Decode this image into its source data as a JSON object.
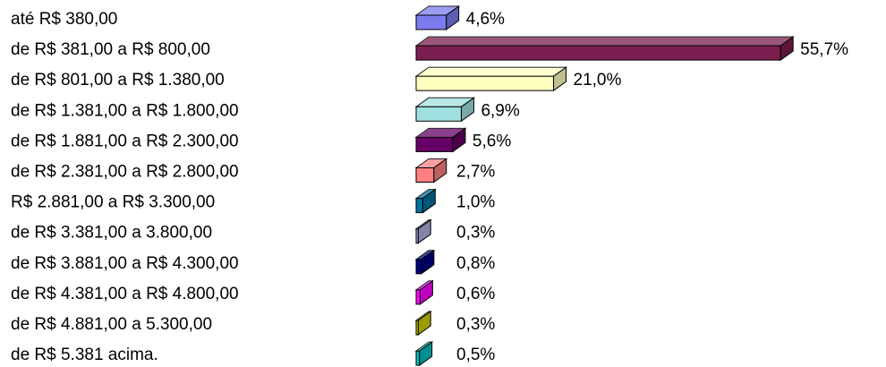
{
  "chart_data": {
    "type": "bar",
    "orientation": "horizontal",
    "categories": [
      "até R$ 380,00",
      "de R$ 381,00 a R$ 800,00",
      "de R$ 801,00 a R$ 1.380,00",
      "de R$ 1.381,00 a R$ 1.800,00",
      "de  R$ 1.881,00 a R$ 2.300,00",
      "de R$ 2.381,00 a R$ 2.800,00",
      "R$ 2.881,00 a R$ 3.300,00",
      "de R$ 3.381,00 a 3.800,00",
      "de R$ 3.881,00 a R$ 4.300,00",
      "de R$ 4.381,00 a R$ 4.800,00",
      "de R$ 4.881,00 a 5.300,00",
      "de R$ 5.381 acima."
    ],
    "values": [
      4.6,
      55.7,
      21.0,
      6.9,
      5.6,
      2.7,
      1.0,
      0.3,
      0.8,
      0.6,
      0.3,
      0.5
    ],
    "value_labels": [
      "4,6%",
      "55,7%",
      "21,0%",
      "6,9%",
      "5,6%",
      "2,7%",
      "1,0%",
      "0,3%",
      "0,8%",
      "0,6%",
      "0,3%",
      "0,5%"
    ],
    "colors": [
      "#7b7bef",
      "#7a1f4f",
      "#ffffc0",
      "#a0e0e0",
      "#660066",
      "#ff8080",
      "#0070a0",
      "#b0b0e0",
      "#000080",
      "#ff00ff",
      "#d0d000",
      "#00c0c0"
    ]
  }
}
